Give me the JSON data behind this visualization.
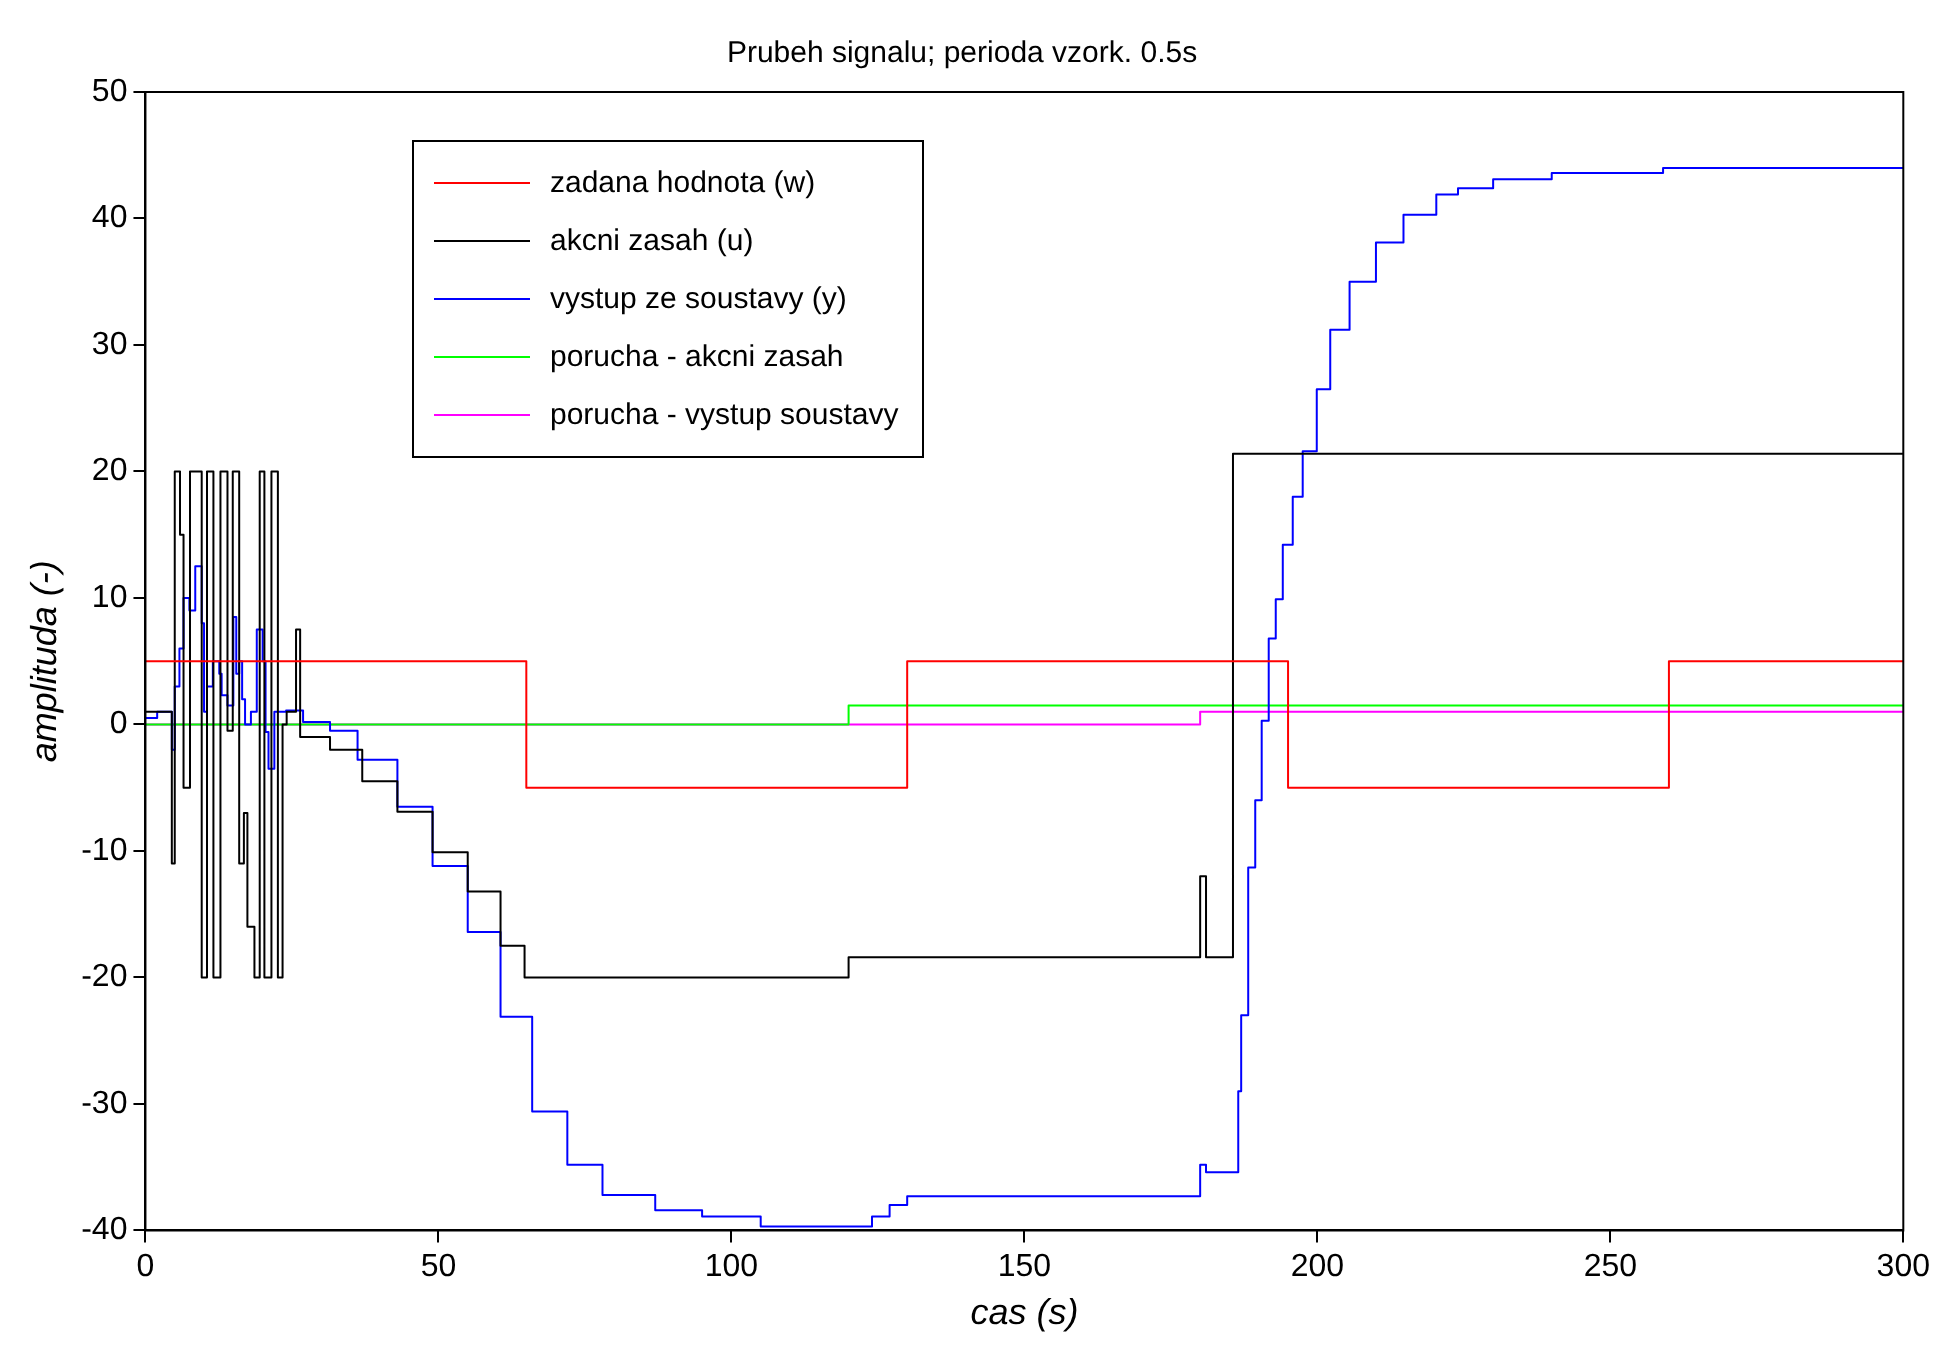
{
  "chart_data": {
    "type": "step",
    "title": "Prubeh signalu; perioda vzork. 0.5s",
    "xlabel": "cas (s)",
    "ylabel": "amplituda (-)",
    "xlim": [
      0,
      300
    ],
    "xticks": [
      0,
      50,
      100,
      150,
      200,
      250,
      300
    ],
    "ylim": [
      -40,
      50
    ],
    "yticks": [
      -40,
      -30,
      -20,
      -10,
      0,
      10,
      20,
      30,
      40,
      50
    ],
    "grid": false,
    "legend": "top left",
    "marker": "none",
    "line_style": "solid",
    "series": [
      {
        "name": "zadana hodnota (w)",
        "color": "#ff0000",
        "x": [
          0,
          65,
          130,
          195,
          260,
          300
        ],
        "values": [
          5,
          -5,
          5,
          -5,
          5,
          5
        ]
      },
      {
        "name": "akcni zasah (u)",
        "color": "#000000",
        "x": [
          0,
          4.5,
          5,
          5.9,
          6.5,
          7.6,
          9.6,
          10.5,
          11.6,
          12.8,
          14,
          14.9,
          16,
          16.8,
          17.4,
          18.6,
          19.5,
          20.3,
          21.5,
          22.6,
          23.4,
          24.1,
          25.7,
          26.4,
          31.5,
          37,
          43,
          49,
          55,
          60.6,
          64.7,
          120,
          180,
          181,
          185.6,
          300
        ],
        "values": [
          1,
          -11,
          20,
          15,
          -5,
          20,
          -20,
          20,
          -20,
          20,
          -0.5,
          20,
          -11,
          -7,
          -16,
          -20,
          20,
          -20,
          20,
          -20,
          0,
          1,
          7.5,
          -1,
          -2,
          -4.5,
          -6.9,
          -10.1,
          -13.2,
          -17.5,
          -20,
          -18.4,
          -12,
          -18.4,
          21.4,
          21.4
        ]
      },
      {
        "name": "vystup ze soustavy (y)",
        "color": "#0000ff",
        "x": [
          0,
          2,
          4.5,
          5,
          5.8,
          6.5,
          7.5,
          8.5,
          9.6,
          10,
          10.5,
          11.5,
          12.6,
          13,
          14,
          15,
          15.5,
          16,
          16.5,
          17,
          18,
          19,
          20,
          20.5,
          21,
          22,
          24,
          26.9,
          31.5,
          36.2,
          43,
          49,
          55,
          60.6,
          66,
          72,
          78,
          87,
          95,
          105,
          120,
          124,
          127,
          130,
          180,
          181,
          186.5,
          187,
          188.2,
          189.4,
          190.5,
          191.7,
          192.9,
          194.1,
          195.8,
          197.5,
          199.9,
          202.2,
          205.5,
          210,
          214.7,
          220.3,
          224,
          230,
          240,
          259,
          300
        ],
        "values": [
          0.5,
          1,
          -2,
          3,
          6,
          10,
          9,
          12.5,
          8,
          1,
          3,
          5,
          4,
          2.3,
          1.5,
          8.5,
          4,
          5,
          2,
          0,
          1,
          7.5,
          5,
          -0.6,
          -3.5,
          1,
          1.1,
          0.2,
          -0.5,
          -2.8,
          -6.5,
          -11.2,
          -16.4,
          -23.1,
          -30.6,
          -34.8,
          -37.2,
          -38.4,
          -38.9,
          -39.7,
          -39.7,
          -38.9,
          -38,
          -37.3,
          -34.8,
          -35.4,
          -29,
          -23,
          -11.3,
          -6,
          0.3,
          6.8,
          9.9,
          14.2,
          18,
          21.6,
          26.5,
          31.2,
          35,
          38.1,
          40.3,
          41.9,
          42.4,
          43.1,
          43.6,
          44,
          44
        ]
      },
      {
        "name": "porucha - akcni zasah",
        "color": "#00ff00",
        "x": [
          0,
          120,
          300
        ],
        "values": [
          0,
          1.5,
          1.5
        ]
      },
      {
        "name": "porucha - vystup soustavy",
        "color": "#ff00ff",
        "x": [
          0,
          180,
          300
        ],
        "values": [
          0,
          1,
          1
        ]
      }
    ]
  }
}
